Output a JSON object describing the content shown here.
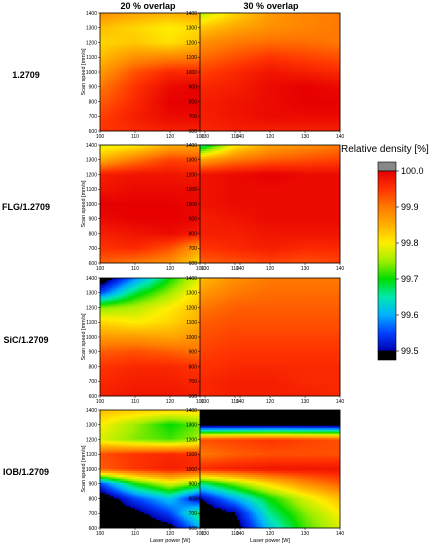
{
  "chart_data": {
    "type": "heatmap",
    "columns": [
      "20 % overlap",
      "30 % overlap"
    ],
    "rows": [
      "1.2709",
      "FLG/1.2709",
      "SiC/1.2709",
      "IOB/1.2709"
    ],
    "xlabel": "Laser power [W]",
    "ylabel": "Scan speed [mm/s]",
    "x": [
      100,
      110,
      120,
      130,
      140
    ],
    "y": [
      600,
      700,
      800,
      900,
      1000,
      1100,
      1200,
      1300,
      1400
    ],
    "x_ticks": [
      "100",
      "110",
      "120",
      "130",
      "140"
    ],
    "y_ticks": [
      "600",
      "700",
      "800",
      "900",
      "1000",
      "1100",
      "1200",
      "1300",
      "1400"
    ],
    "xlim": [
      100,
      140
    ],
    "ylim": [
      600,
      1400
    ],
    "colorbar": {
      "title": "Relative density [%]",
      "ticks": [
        "100.0",
        "99.9",
        "99.8",
        "99.7",
        "99.6",
        "99.5"
      ],
      "range": [
        99.5,
        100.0
      ],
      "overflow_color": "#888888"
    },
    "panels": [
      {
        "row": "1.2709",
        "column": "20 % overlap",
        "z": [
          [
            99.95,
            99.96,
            99.97,
            99.97,
            99.96
          ],
          [
            99.94,
            99.97,
            99.99,
            99.99,
            99.99
          ],
          [
            99.92,
            99.96,
            100.0,
            100.0,
            100.0
          ],
          [
            99.9,
            99.95,
            99.99,
            100.0,
            99.99
          ],
          [
            99.87,
            99.93,
            99.96,
            99.96,
            99.95
          ],
          [
            99.84,
            99.88,
            99.89,
            99.9,
            99.91
          ],
          [
            99.82,
            99.83,
            99.81,
            99.84,
            99.88
          ],
          [
            99.84,
            99.82,
            99.8,
            99.82,
            99.86
          ],
          [
            99.88,
            99.86,
            99.85,
            99.86,
            99.89
          ]
        ]
      },
      {
        "row": "1.2709",
        "column": "30 % overlap",
        "z": [
          [
            99.96,
            99.97,
            99.97,
            99.97,
            99.97
          ],
          [
            99.97,
            99.98,
            99.99,
            99.99,
            99.99
          ],
          [
            99.97,
            99.98,
            99.99,
            100.0,
            100.0
          ],
          [
            99.96,
            99.97,
            99.99,
            100.0,
            99.99
          ],
          [
            99.94,
            99.96,
            99.98,
            99.97,
            99.96
          ],
          [
            99.91,
            99.93,
            99.95,
            99.94,
            99.93
          ],
          [
            99.88,
            99.9,
            99.91,
            99.91,
            99.9
          ],
          [
            99.83,
            99.86,
            99.88,
            99.89,
            99.9
          ],
          [
            99.76,
            99.82,
            99.87,
            99.89,
            99.9
          ]
        ]
      },
      {
        "row": "FLG/1.2709",
        "column": "20 % overlap",
        "z": [
          [
            99.92,
            99.9,
            99.88,
            99.8,
            99.8
          ],
          [
            99.95,
            99.96,
            99.93,
            99.85,
            99.83
          ],
          [
            99.97,
            99.98,
            99.99,
            99.97,
            99.96
          ],
          [
            99.99,
            100.0,
            100.0,
            99.99,
            99.98
          ],
          [
            100.0,
            100.0,
            100.0,
            99.99,
            99.99
          ],
          [
            99.98,
            99.99,
            99.99,
            99.99,
            99.98
          ],
          [
            99.97,
            99.98,
            99.98,
            99.97,
            99.97
          ],
          [
            99.85,
            99.9,
            99.94,
            99.93,
            99.92
          ],
          [
            99.78,
            99.8,
            99.85,
            99.86,
            99.88
          ]
        ]
      },
      {
        "row": "FLG/1.2709",
        "column": "30 % overlap",
        "z": [
          [
            99.92,
            99.93,
            99.94,
            99.93,
            99.94
          ],
          [
            99.95,
            99.96,
            99.97,
            99.96,
            99.96
          ],
          [
            99.97,
            99.97,
            99.98,
            99.98,
            99.98
          ],
          [
            99.97,
            99.98,
            99.99,
            99.99,
            99.99
          ],
          [
            99.98,
            99.99,
            99.99,
            99.99,
            99.99
          ],
          [
            99.98,
            99.99,
            99.99,
            99.99,
            99.99
          ],
          [
            99.98,
            99.99,
            100.0,
            99.99,
            99.99
          ],
          [
            99.86,
            99.9,
            99.92,
            99.93,
            99.94
          ],
          [
            99.65,
            99.8,
            99.86,
            99.88,
            99.9
          ]
        ]
      },
      {
        "row": "SiC/1.2709",
        "column": "20 % overlap",
        "z": [
          [
            99.97,
            99.98,
            99.98,
            99.97,
            99.96
          ],
          [
            99.96,
            99.97,
            99.97,
            99.96,
            99.95
          ],
          [
            99.95,
            99.96,
            99.96,
            99.95,
            99.95
          ],
          [
            99.92,
            99.93,
            99.92,
            99.9,
            99.92
          ],
          [
            99.87,
            99.87,
            99.86,
            99.88,
            99.9
          ],
          [
            99.82,
            99.8,
            99.82,
            99.86,
            99.88
          ],
          [
            99.74,
            99.76,
            99.8,
            99.85,
            99.88
          ],
          [
            99.55,
            99.68,
            99.75,
            99.83,
            99.87
          ],
          [
            99.45,
            99.58,
            99.7,
            99.8,
            99.86
          ]
        ]
      },
      {
        "row": "SiC/1.2709",
        "column": "30 % overlap",
        "z": [
          [
            99.96,
            99.97,
            99.97,
            99.97,
            99.96
          ],
          [
            99.96,
            99.97,
            99.97,
            99.96,
            99.96
          ],
          [
            99.95,
            99.96,
            99.96,
            99.96,
            99.96
          ],
          [
            99.94,
            99.95,
            99.95,
            99.95,
            99.95
          ],
          [
            99.93,
            99.94,
            99.94,
            99.94,
            99.94
          ],
          [
            99.92,
            99.93,
            99.93,
            99.93,
            99.93
          ],
          [
            99.9,
            99.92,
            99.92,
            99.92,
            99.92
          ],
          [
            99.87,
            99.9,
            99.91,
            99.91,
            99.91
          ],
          [
            99.84,
            99.88,
            99.9,
            99.9,
            99.9
          ]
        ]
      },
      {
        "row": "IOB/1.2709",
        "column": "20 % overlap",
        "z": [
          [
            99.45,
            99.45,
            99.48,
            99.62,
            99.75
          ],
          [
            99.45,
            99.48,
            99.55,
            99.7,
            99.65
          ],
          [
            99.45,
            99.55,
            99.62,
            99.48,
            99.45
          ],
          [
            99.55,
            99.7,
            99.78,
            99.72,
            99.68
          ],
          [
            99.92,
            99.95,
            99.97,
            99.96,
            99.95
          ],
          [
            99.93,
            99.95,
            99.96,
            99.95,
            99.94
          ],
          [
            99.78,
            99.74,
            99.72,
            99.76,
            99.82
          ],
          [
            99.8,
            99.75,
            99.7,
            99.74,
            99.8
          ],
          [
            99.84,
            99.83,
            99.82,
            99.82,
            99.84
          ]
        ]
      },
      {
        "row": "IOB/1.2709",
        "column": "30 % overlap",
        "z": [
          [
            99.45,
            99.47,
            99.62,
            99.72,
            99.78
          ],
          [
            99.45,
            99.5,
            99.66,
            99.74,
            99.8
          ],
          [
            99.5,
            99.6,
            99.7,
            99.78,
            99.84
          ],
          [
            99.66,
            99.74,
            99.82,
            99.88,
            99.92
          ],
          [
            99.96,
            99.97,
            99.98,
            99.98,
            99.98
          ],
          [
            99.9,
            99.92,
            99.93,
            99.93,
            99.93
          ],
          [
            99.93,
            99.94,
            99.95,
            99.94,
            99.93
          ],
          [
            99.45,
            99.45,
            99.45,
            99.45,
            99.45
          ],
          [
            99.45,
            99.45,
            99.45,
            99.45,
            99.45
          ]
        ]
      }
    ]
  }
}
